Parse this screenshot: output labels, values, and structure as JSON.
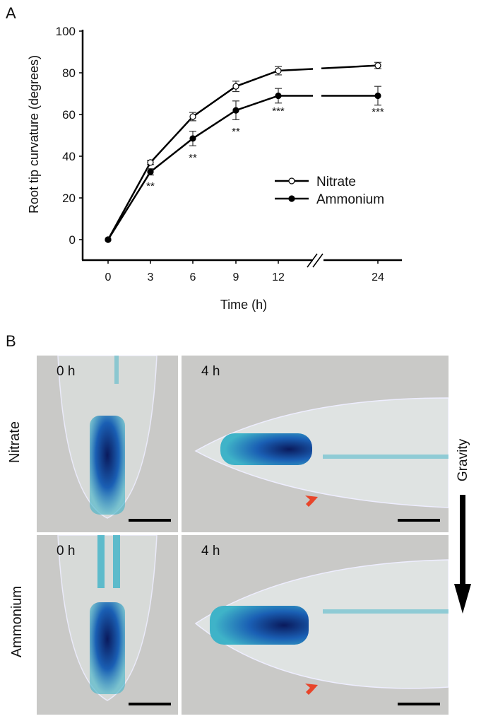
{
  "figure": {
    "panel_a_label": "A",
    "panel_b_label": "B"
  },
  "chart_data": {
    "type": "line",
    "title": "",
    "xlabel": "Time (h)",
    "ylabel": "Root tip curvature (degrees)",
    "x": [
      0,
      3,
      6,
      9,
      12,
      24
    ],
    "x_tick_labels": [
      "0",
      "3",
      "6",
      "9",
      "12",
      "24"
    ],
    "x_axis_break": "between 12 and 24",
    "y_ticks": [
      0,
      20,
      40,
      60,
      80,
      100
    ],
    "ylim": [
      -10,
      100
    ],
    "grid": false,
    "legend_position": "center-right",
    "series": [
      {
        "name": "Nitrate",
        "marker": "open-circle",
        "values": [
          0,
          37,
          59,
          73.5,
          81,
          83.5
        ],
        "errors": [
          0,
          1,
          2,
          2.5,
          2,
          1.5
        ]
      },
      {
        "name": "Ammonium",
        "marker": "filled-circle",
        "values": [
          0,
          32.5,
          48.5,
          62,
          69,
          69
        ],
        "errors": [
          0,
          1.5,
          3.5,
          4.5,
          3.5,
          4.5
        ]
      }
    ],
    "annotations": [
      {
        "x": 3,
        "text": "**"
      },
      {
        "x": 6,
        "text": "**"
      },
      {
        "x": 9,
        "text": "**"
      },
      {
        "x": 12,
        "text": "***"
      },
      {
        "x": 24,
        "text": "***"
      }
    ]
  },
  "micrographs": {
    "rows": [
      {
        "label": "Nitrate",
        "panels": [
          {
            "time": "0 h"
          },
          {
            "time": "4 h"
          }
        ]
      },
      {
        "label": "Ammonium",
        "panels": [
          {
            "time": "0 h"
          },
          {
            "time": "4 h"
          }
        ]
      }
    ],
    "gravity_label": "Gravity",
    "colors": {
      "background": "#c9c9c7",
      "stain_dark": "#0a1a5c",
      "stain_mid": "#1a5fb4",
      "stain_light": "#3fb3c8",
      "arrow": "#e8452a"
    }
  }
}
